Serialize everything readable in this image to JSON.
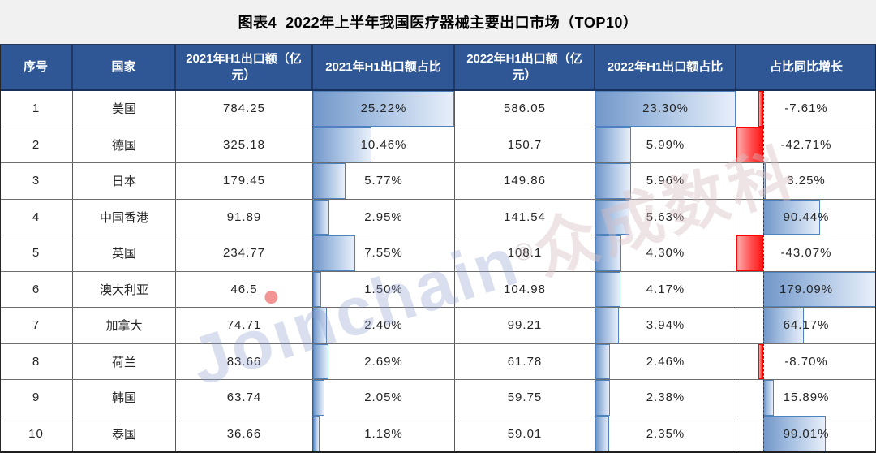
{
  "title": "图表4  2022年上半年我国医疗器械主要出口市场（TOP10）",
  "watermark": {
    "latin_start": "Jo",
    "dotless_i": "ı",
    "latin_end": "nchain",
    "reg": "®",
    "cn": "众成数科"
  },
  "colors": {
    "header_bg": "#2f5795",
    "header_separator": "#1f3864",
    "title_band_bg": "#f1f1f2",
    "bar_blue_border": "#4f81bd",
    "bar_blue_start": "#7297c9",
    "bar_blue_end": "#e8effa",
    "bar_red_border": "#ff0000",
    "bar_red_start": "#ffacac",
    "bar_red_end": "#ff1414"
  },
  "scales": {
    "share_2021_max": 25.22,
    "share_2022_max": 23.3,
    "growth_min": -43.07,
    "growth_max": 179.09
  },
  "table": {
    "headers": [
      "序号",
      "国家",
      "2021年H1出口额（亿元）",
      "2021年H1出口额占比",
      "2022年H1出口额（亿元）",
      "2022年H1出口额占比",
      "占比同比增长"
    ],
    "rows": [
      {
        "no": "1",
        "country": "美国",
        "export_2021": "784.25",
        "share_2021": "25.22%",
        "share_2021_val": 25.22,
        "export_2022": "586.05",
        "share_2022": "23.30%",
        "share_2022_val": 23.3,
        "growth": "-7.61%",
        "growth_val": -7.61
      },
      {
        "no": "2",
        "country": "德国",
        "export_2021": "325.18",
        "share_2021": "10.46%",
        "share_2021_val": 10.46,
        "export_2022": "150.7",
        "share_2022": "5.99%",
        "share_2022_val": 5.99,
        "growth": "-42.71%",
        "growth_val": -42.71
      },
      {
        "no": "3",
        "country": "日本",
        "export_2021": "179.45",
        "share_2021": "5.77%",
        "share_2021_val": 5.77,
        "export_2022": "149.86",
        "share_2022": "5.96%",
        "share_2022_val": 5.96,
        "growth": "3.25%",
        "growth_val": 3.25
      },
      {
        "no": "4",
        "country": "中国香港",
        "export_2021": "91.89",
        "share_2021": "2.95%",
        "share_2021_val": 2.95,
        "export_2022": "141.54",
        "share_2022": "5.63%",
        "share_2022_val": 5.63,
        "growth": "90.44%",
        "growth_val": 90.44
      },
      {
        "no": "5",
        "country": "英国",
        "export_2021": "234.77",
        "share_2021": "7.55%",
        "share_2021_val": 7.55,
        "export_2022": "108.1",
        "share_2022": "4.30%",
        "share_2022_val": 4.3,
        "growth": "-43.07%",
        "growth_val": -43.07
      },
      {
        "no": "6",
        "country": "澳大利亚",
        "export_2021": "46.5",
        "share_2021": "1.50%",
        "share_2021_val": 1.5,
        "export_2022": "104.98",
        "share_2022": "4.17%",
        "share_2022_val": 4.17,
        "growth": "179.09%",
        "growth_val": 179.09
      },
      {
        "no": "7",
        "country": "加拿大",
        "export_2021": "74.71",
        "share_2021": "2.40%",
        "share_2021_val": 2.4,
        "export_2022": "99.21",
        "share_2022": "3.94%",
        "share_2022_val": 3.94,
        "growth": "64.17%",
        "growth_val": 64.17
      },
      {
        "no": "8",
        "country": "荷兰",
        "export_2021": "83.66",
        "share_2021": "2.69%",
        "share_2021_val": 2.69,
        "export_2022": "61.78",
        "share_2022": "2.46%",
        "share_2022_val": 2.46,
        "growth": "-8.70%",
        "growth_val": -8.7
      },
      {
        "no": "9",
        "country": "韩国",
        "export_2021": "63.74",
        "share_2021": "2.05%",
        "share_2021_val": 2.05,
        "export_2022": "59.75",
        "share_2022": "2.38%",
        "share_2022_val": 2.38,
        "growth": "15.89%",
        "growth_val": 15.89
      },
      {
        "no": "10",
        "country": "泰国",
        "export_2021": "36.66",
        "share_2021": "1.18%",
        "share_2021_val": 1.18,
        "export_2022": "59.01",
        "share_2022": "2.35%",
        "share_2022_val": 2.35,
        "growth": "99.01%",
        "growth_val": 99.01
      }
    ]
  },
  "chart_data": {
    "type": "table",
    "title": "图表4 2022年上半年我国医疗器械主要出口市场（TOP10）",
    "columns": [
      "序号",
      "国家",
      "2021年H1出口额（亿元）",
      "2021年H1出口额占比",
      "2022年H1出口额（亿元）",
      "2022年H1出口额占比",
      "占比同比增长"
    ],
    "categories": [
      "美国",
      "德国",
      "日本",
      "中国香港",
      "英国",
      "澳大利亚",
      "加拿大",
      "荷兰",
      "韩国",
      "泰国"
    ],
    "series": [
      {
        "name": "2021年H1出口额（亿元）",
        "values": [
          784.25,
          325.18,
          179.45,
          91.89,
          234.77,
          46.5,
          74.71,
          83.66,
          63.74,
          36.66
        ]
      },
      {
        "name": "2021年H1出口额占比(%)",
        "values": [
          25.22,
          10.46,
          5.77,
          2.95,
          7.55,
          1.5,
          2.4,
          2.69,
          2.05,
          1.18
        ],
        "databar": "blue-gradient",
        "databar_max": 25.22
      },
      {
        "name": "2022年H1出口额（亿元）",
        "values": [
          586.05,
          150.7,
          149.86,
          141.54,
          108.1,
          104.98,
          99.21,
          61.78,
          59.75,
          59.01
        ]
      },
      {
        "name": "2022年H1出口额占比(%)",
        "values": [
          23.3,
          5.99,
          5.96,
          5.63,
          4.3,
          4.17,
          3.94,
          2.46,
          2.38,
          2.35
        ],
        "databar": "blue-gradient",
        "databar_max": 23.3
      },
      {
        "name": "占比同比增长(%)",
        "values": [
          -7.61,
          -42.71,
          3.25,
          90.44,
          -43.07,
          179.09,
          64.17,
          -8.7,
          15.89,
          99.01
        ],
        "databar": "blue-positive-red-negative",
        "axis_range": [
          -43.07,
          179.09
        ]
      }
    ],
    "legend_position": "none",
    "grid": "table-borders"
  }
}
